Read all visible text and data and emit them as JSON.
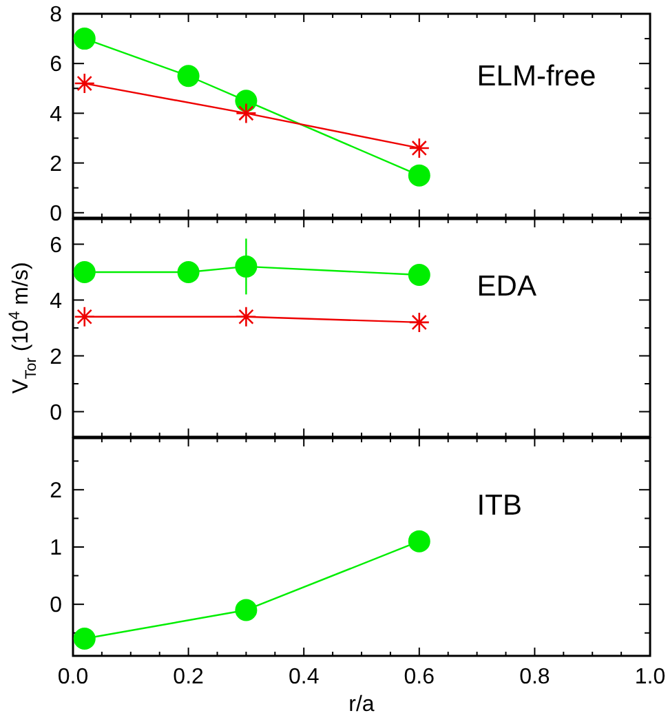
{
  "chart_data": [
    {
      "type": "line",
      "annotations": [
        "ELM-free"
      ],
      "xlim": [
        0,
        1
      ],
      "ylim": [
        -0.2,
        8
      ],
      "tick_labels": "y",
      "line_style": "solid",
      "xticks": [
        0,
        {
          "value": 0.05,
          "label": null
        },
        {
          "value": 0.1,
          "label": null
        },
        {
          "value": 0.15,
          "label": null
        },
        0.2,
        {
          "value": 0.25,
          "label": null
        },
        {
          "value": 0.3,
          "label": null
        },
        {
          "value": 0.35,
          "label": null
        },
        0.4,
        {
          "value": 0.45,
          "label": null
        },
        {
          "value": 0.5,
          "label": null
        },
        {
          "value": 0.55,
          "label": null
        },
        0.6,
        {
          "value": 0.65,
          "label": null
        },
        {
          "value": 0.7,
          "label": null
        },
        {
          "value": 0.75,
          "label": null
        },
        0.8,
        {
          "value": 0.85,
          "label": null
        },
        {
          "value": 0.9,
          "label": null
        },
        {
          "value": 0.95,
          "label": null
        },
        1
      ],
      "yticks": [
        0,
        {
          "value": 1,
          "label": null
        },
        2,
        {
          "value": 3,
          "label": null
        },
        4,
        {
          "value": 5,
          "label": null
        },
        6,
        {
          "value": 7,
          "label": null
        },
        8
      ],
      "series": [
        {
          "color": "#00ee00",
          "marker": "circle",
          "x": [
            0.02,
            0.2,
            0.3,
            0.6
          ],
          "values": [
            7.0,
            5.5,
            4.5,
            1.5
          ]
        },
        {
          "color": "#ee0000",
          "marker": "cross",
          "x": [
            0.02,
            0.3,
            0.6
          ],
          "values": [
            5.2,
            4.0,
            2.6
          ]
        }
      ]
    },
    {
      "type": "line",
      "annotations": [
        "EDA"
      ],
      "ylabel": "V$_{Tor}$ (10$^{4}$ m/s)",
      "xlim": [
        0,
        1
      ],
      "ylim": [
        -0.9,
        6.9
      ],
      "tick_labels": "y",
      "line_style": "solid",
      "xticks": [
        0,
        {
          "value": 0.05,
          "label": null
        },
        {
          "value": 0.1,
          "label": null
        },
        {
          "value": 0.15,
          "label": null
        },
        0.2,
        {
          "value": 0.25,
          "label": null
        },
        {
          "value": 0.3,
          "label": null
        },
        {
          "value": 0.35,
          "label": null
        },
        0.4,
        {
          "value": 0.45,
          "label": null
        },
        {
          "value": 0.5,
          "label": null
        },
        {
          "value": 0.55,
          "label": null
        },
        0.6,
        {
          "value": 0.65,
          "label": null
        },
        {
          "value": 0.7,
          "label": null
        },
        {
          "value": 0.75,
          "label": null
        },
        0.8,
        {
          "value": 0.85,
          "label": null
        },
        {
          "value": 0.9,
          "label": null
        },
        {
          "value": 0.95,
          "label": null
        },
        1
      ],
      "yticks": [
        0,
        {
          "value": 1,
          "label": null
        },
        2,
        {
          "value": 3,
          "label": null
        },
        4,
        {
          "value": 5,
          "label": null
        },
        6
      ],
      "series": [
        {
          "color": "#00ee00",
          "marker": "circle",
          "x": [
            0.02,
            0.2,
            0.3,
            0.6
          ],
          "values": [
            5.0,
            5.0,
            5.2,
            4.9
          ],
          "errors": [
            null,
            null,
            1.0,
            null
          ]
        },
        {
          "color": "#ee0000",
          "marker": "cross",
          "x": [
            0.02,
            0.3,
            0.6
          ],
          "values": [
            3.4,
            3.4,
            3.2
          ]
        }
      ]
    },
    {
      "type": "line",
      "annotations": [
        "ITB"
      ],
      "xlabel": "r/a",
      "xlim": [
        0,
        1
      ],
      "ylim": [
        -0.9,
        2.9
      ],
      "line_style": "solid",
      "xticks": [
        {
          "value": 0,
          "label": "0.0"
        },
        {
          "value": 0.05,
          "label": null
        },
        {
          "value": 0.1,
          "label": null
        },
        {
          "value": 0.15,
          "label": null
        },
        0.2,
        {
          "value": 0.25,
          "label": null
        },
        {
          "value": 0.3,
          "label": null
        },
        {
          "value": 0.35,
          "label": null
        },
        0.4,
        {
          "value": 0.45,
          "label": null
        },
        {
          "value": 0.5,
          "label": null
        },
        {
          "value": 0.55,
          "label": null
        },
        0.6,
        {
          "value": 0.65,
          "label": null
        },
        {
          "value": 0.7,
          "label": null
        },
        {
          "value": 0.75,
          "label": null
        },
        0.8,
        {
          "value": 0.85,
          "label": null
        },
        {
          "value": 0.9,
          "label": null
        },
        {
          "value": 0.95,
          "label": null
        },
        {
          "value": 1,
          "label": "1.0"
        }
      ],
      "yticks": [
        {
          "value": -0.5,
          "label": null
        },
        0,
        {
          "value": 0.5,
          "label": null
        },
        1,
        {
          "value": 1.5,
          "label": null
        },
        2,
        {
          "value": 2.5,
          "label": null
        }
      ],
      "series": [
        {
          "color": "#00ee00",
          "marker": "circle",
          "x": [
            0.02,
            0.3,
            0.6
          ],
          "values": [
            -0.6,
            -0.1,
            1.1
          ]
        }
      ]
    }
  ]
}
